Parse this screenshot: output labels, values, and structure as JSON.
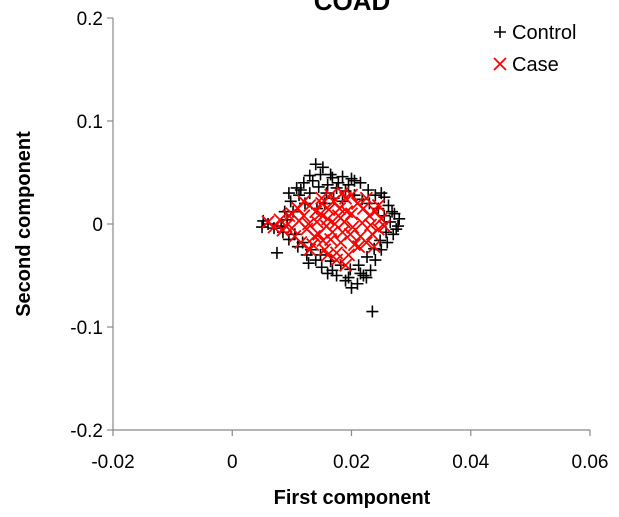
{
  "chart_data": {
    "type": "scatter",
    "title": "COAD",
    "xlabel": "First component",
    "ylabel": "Second component",
    "xlim": [
      -0.02,
      0.06
    ],
    "ylim": [
      -0.2,
      0.2
    ],
    "xticks": [
      "-0.02",
      "0",
      "0.02",
      "0.04",
      "0.06"
    ],
    "yticks": [
      "0.2",
      "0.1",
      "0",
      "-0.1",
      "-0.2"
    ],
    "grid": false,
    "legend_position": "top-right",
    "series": [
      {
        "name": "Control",
        "marker": "plus",
        "color": "#000000",
        "points": [
          [
            0.014,
            0.058
          ],
          [
            0.0152,
            0.055
          ],
          [
            0.013,
            0.047
          ],
          [
            0.0168,
            0.045
          ],
          [
            0.0185,
            0.046
          ],
          [
            0.02,
            0.044
          ],
          [
            0.0215,
            0.04
          ],
          [
            0.012,
            0.04
          ],
          [
            0.0108,
            0.035
          ],
          [
            0.0095,
            0.03
          ],
          [
            0.0228,
            0.033
          ],
          [
            0.024,
            0.028
          ],
          [
            0.0255,
            0.026
          ],
          [
            0.0262,
            0.018
          ],
          [
            0.0272,
            0.01
          ],
          [
            0.028,
            0.005
          ],
          [
            0.0278,
            -0.002
          ],
          [
            0.027,
            -0.01
          ],
          [
            0.026,
            -0.018
          ],
          [
            0.025,
            -0.025
          ],
          [
            0.024,
            -0.035
          ],
          [
            0.0232,
            -0.045
          ],
          [
            0.0225,
            -0.052
          ],
          [
            0.021,
            -0.058
          ],
          [
            0.02,
            -0.062
          ],
          [
            0.0235,
            -0.085
          ],
          [
            0.022,
            -0.05
          ],
          [
            0.019,
            -0.055
          ],
          [
            0.0175,
            -0.05
          ],
          [
            0.016,
            -0.048
          ],
          [
            0.015,
            -0.042
          ],
          [
            0.014,
            -0.035
          ],
          [
            0.0125,
            -0.03
          ],
          [
            0.011,
            -0.022
          ],
          [
            0.0095,
            -0.015
          ],
          [
            0.0085,
            -0.008
          ],
          [
            0.007,
            -0.004
          ],
          [
            0.006,
            0.0
          ],
          [
            0.0052,
            0.003
          ],
          [
            0.005,
            -0.003
          ],
          [
            0.0075,
            -0.028
          ],
          [
            0.0088,
            0.012
          ],
          [
            0.0098,
            0.022
          ],
          [
            0.0112,
            0.028
          ],
          [
            0.013,
            0.03
          ],
          [
            0.0145,
            0.036
          ],
          [
            0.016,
            0.038
          ],
          [
            0.0175,
            0.035
          ],
          [
            0.019,
            0.032
          ],
          [
            0.0205,
            0.028
          ],
          [
            0.0218,
            0.024
          ],
          [
            0.023,
            0.02
          ],
          [
            0.0245,
            0.015
          ],
          [
            0.0255,
            0.008
          ],
          [
            0.0265,
            0.002
          ],
          [
            0.0135,
            0.042
          ],
          [
            0.0148,
            0.048
          ],
          [
            0.0178,
            0.04
          ],
          [
            0.0195,
            0.038
          ],
          [
            0.0158,
            0.03
          ],
          [
            0.0122,
            0.02
          ],
          [
            0.0102,
            0.012
          ],
          [
            0.0092,
            0.004
          ],
          [
            0.0082,
            -0.002
          ],
          [
            0.0105,
            -0.01
          ],
          [
            0.0118,
            -0.018
          ],
          [
            0.0132,
            -0.025
          ],
          [
            0.0148,
            -0.03
          ],
          [
            0.0165,
            -0.036
          ],
          [
            0.0182,
            -0.04
          ],
          [
            0.0198,
            -0.044
          ],
          [
            0.0212,
            -0.04
          ],
          [
            0.0226,
            -0.032
          ],
          [
            0.0238,
            -0.024
          ],
          [
            0.0248,
            -0.016
          ],
          [
            0.0258,
            -0.008
          ],
          [
            0.017,
            0.025
          ],
          [
            0.0155,
            0.02
          ],
          [
            0.0185,
            0.022
          ],
          [
            0.0142,
            0.015
          ],
          [
            0.0205,
            0.042
          ],
          [
            0.0165,
            0.048
          ],
          [
            0.0115,
            0.033
          ],
          [
            0.025,
            0.03
          ],
          [
            0.0215,
            -0.048
          ],
          [
            0.0168,
            -0.045
          ],
          [
            0.0128,
            -0.038
          ],
          [
            0.0275,
            -0.005
          ],
          [
            0.0268,
            0.012
          ],
          [
            0.0195,
            -0.052
          ]
        ]
      },
      {
        "name": "Case",
        "marker": "cross",
        "color": "#ff0000",
        "points": [
          [
            0.006,
            0.002
          ],
          [
            0.007,
            -0.003
          ],
          [
            0.008,
            0.004
          ],
          [
            0.009,
            -0.002
          ],
          [
            0.01,
            0.01
          ],
          [
            0.0105,
            -0.012
          ],
          [
            0.011,
            0.015
          ],
          [
            0.0115,
            -0.018
          ],
          [
            0.012,
            0.008
          ],
          [
            0.0125,
            -0.005
          ],
          [
            0.013,
            0.018
          ],
          [
            0.0135,
            -0.02
          ],
          [
            0.014,
            0.012
          ],
          [
            0.0145,
            -0.01
          ],
          [
            0.015,
            0.02
          ],
          [
            0.0155,
            -0.025
          ],
          [
            0.016,
            0.005
          ],
          [
            0.0165,
            -0.015
          ],
          [
            0.017,
            0.022
          ],
          [
            0.0175,
            -0.028
          ],
          [
            0.018,
            0.015
          ],
          [
            0.0185,
            -0.008
          ],
          [
            0.019,
            0.025
          ],
          [
            0.0195,
            -0.03
          ],
          [
            0.02,
            0.01
          ],
          [
            0.0205,
            -0.02
          ],
          [
            0.021,
            0.02
          ],
          [
            0.0215,
            -0.012
          ],
          [
            0.022,
            0.015
          ],
          [
            0.0225,
            -0.018
          ],
          [
            0.023,
            0.008
          ],
          [
            0.0235,
            -0.01
          ],
          [
            0.024,
            0.012
          ],
          [
            0.0245,
            -0.005
          ],
          [
            0.025,
            0.005
          ],
          [
            0.0255,
            -0.002
          ],
          [
            0.01,
            -0.004
          ],
          [
            0.0112,
            0.003
          ],
          [
            0.0128,
            0.0
          ],
          [
            0.0142,
            0.002
          ],
          [
            0.0158,
            -0.002
          ],
          [
            0.0172,
            0.0
          ],
          [
            0.0188,
            0.002
          ],
          [
            0.0202,
            -0.003
          ],
          [
            0.0218,
            0.001
          ],
          [
            0.0232,
            -0.001
          ],
          [
            0.0148,
            0.01
          ],
          [
            0.0162,
            0.014
          ],
          [
            0.0178,
            0.008
          ],
          [
            0.0192,
            0.012
          ],
          [
            0.0138,
            -0.012
          ],
          [
            0.0152,
            -0.016
          ],
          [
            0.0168,
            -0.008
          ],
          [
            0.0182,
            -0.018
          ],
          [
            0.0198,
            -0.01
          ],
          [
            0.0212,
            -0.022
          ],
          [
            0.0165,
            0.028
          ],
          [
            0.0185,
            0.03
          ],
          [
            0.0175,
            -0.035
          ],
          [
            0.019,
            -0.04
          ],
          [
            0.012,
            0.022
          ],
          [
            0.0095,
            0.008
          ],
          [
            0.0085,
            -0.006
          ],
          [
            0.0245,
            0.018
          ],
          [
            0.0238,
            -0.022
          ],
          [
            0.016,
            -0.03
          ],
          [
            0.015,
            0.025
          ],
          [
            0.02,
            0.028
          ],
          [
            0.0225,
            0.025
          ],
          [
            0.013,
            -0.025
          ]
        ]
      }
    ]
  }
}
